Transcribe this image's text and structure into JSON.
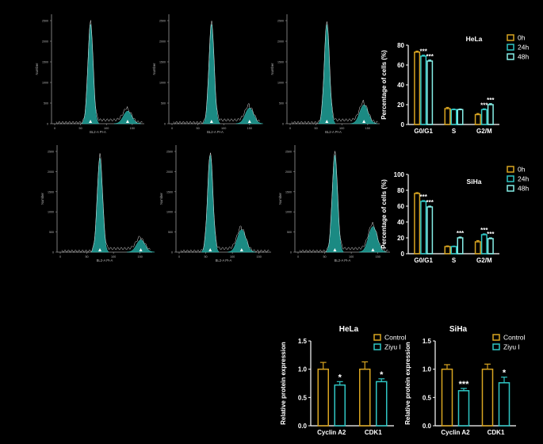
{
  "colors": {
    "background": "#000000",
    "histogram_fill": "#1b8a83",
    "series_0h": "#d9a521",
    "series_24h": "#2fc6c4",
    "series_48h": "#86efe8",
    "series_control": "#d9a521",
    "series_ziyu": "#2fc6c4",
    "axis": "#ffffff",
    "hist_axis": "#9a9a9a"
  },
  "histograms": {
    "xlabel": "BL2-A PI-A",
    "ylabel": "Number",
    "x_ticks": [
      "0",
      "50",
      "100",
      "150"
    ],
    "y_ticks": [
      "0",
      "500",
      "1000",
      "1500",
      "2000",
      "2500"
    ],
    "panels": [
      {
        "id": "hela-0h",
        "g1_pos": 0.42,
        "g1_height": 0.95,
        "g2_pos": 0.82,
        "g2_height": 0.12
      },
      {
        "id": "hela-24h",
        "g1_pos": 0.46,
        "g1_height": 0.95,
        "g2_pos": 0.87,
        "g2_height": 0.15
      },
      {
        "id": "hela-48h",
        "g1_pos": 0.43,
        "g1_height": 0.95,
        "g2_pos": 0.83,
        "g2_height": 0.18
      },
      {
        "id": "siha-0h",
        "g1_pos": 0.45,
        "g1_height": 0.92,
        "g2_pos": 0.88,
        "g2_height": 0.12
      },
      {
        "id": "siha-24h",
        "g1_pos": 0.36,
        "g1_height": 0.95,
        "g2_pos": 0.69,
        "g2_height": 0.22
      },
      {
        "id": "siha-48h",
        "g1_pos": 0.42,
        "g1_height": 0.95,
        "g2_pos": 0.82,
        "g2_height": 0.25
      }
    ]
  },
  "chart_data": [
    {
      "type": "bar",
      "title": "HeLa",
      "ylabel": "Percentage of cells (%)",
      "xlabel": "",
      "ylim": [
        0,
        80
      ],
      "yticks": [
        "0",
        "20",
        "40",
        "60",
        "80"
      ],
      "categories": [
        "G0/G1",
        "S",
        "G2/M"
      ],
      "series": [
        {
          "name": "0h",
          "values": [
            73,
            16,
            10
          ],
          "errors": [
            1,
            1.2,
            1
          ]
        },
        {
          "name": "24h",
          "values": [
            69,
            15,
            15
          ],
          "errors": [
            1,
            0.6,
            0.8
          ]
        },
        {
          "name": "48h",
          "values": [
            64,
            15,
            20
          ],
          "errors": [
            1,
            0.6,
            1
          ]
        }
      ],
      "annotations": [
        {
          "category": "G0/G1",
          "series": "24h",
          "text": "***"
        },
        {
          "category": "G0/G1",
          "series": "48h",
          "text": "***"
        },
        {
          "category": "G2/M",
          "series": "24h",
          "text": "***"
        },
        {
          "category": "G2/M",
          "series": "48h",
          "text": "***"
        }
      ],
      "legend": "top-right"
    },
    {
      "type": "bar",
      "title": "SiHa",
      "ylabel": "Percentage of cells (%)",
      "xlabel": "",
      "ylim": [
        0,
        100
      ],
      "yticks": [
        "0",
        "20",
        "40",
        "60",
        "80",
        "100"
      ],
      "categories": [
        "G0/G1",
        "S",
        "G2/M"
      ],
      "series": [
        {
          "name": "0h",
          "values": [
            76,
            9,
            15
          ],
          "errors": [
            1,
            0.8,
            1.5
          ]
        },
        {
          "name": "24h",
          "values": [
            66,
            9,
            24
          ],
          "errors": [
            1,
            0.6,
            1
          ]
        },
        {
          "name": "48h",
          "values": [
            59,
            20,
            19
          ],
          "errors": [
            1,
            1,
            1
          ]
        }
      ],
      "annotations": [
        {
          "category": "G0/G1",
          "series": "24h",
          "text": "***"
        },
        {
          "category": "G0/G1",
          "series": "48h",
          "text": "***"
        },
        {
          "category": "S",
          "series": "48h",
          "text": "***"
        },
        {
          "category": "G2/M",
          "series": "24h",
          "text": "***"
        },
        {
          "category": "G2/M",
          "series": "48h",
          "text": "***"
        }
      ],
      "legend": "top-right"
    },
    {
      "type": "bar",
      "title": "HeLa",
      "ylabel": "Relative protein expression",
      "xlabel": "",
      "ylim": [
        0,
        1.5
      ],
      "yticks": [
        "0.0",
        "0.5",
        "1.0",
        "1.5"
      ],
      "categories": [
        "Cyclin A2",
        "CDK1"
      ],
      "series": [
        {
          "name": "Control",
          "values": [
            1.0,
            1.0
          ],
          "errors": [
            0.12,
            0.13
          ]
        },
        {
          "name": "Ziyu I",
          "values": [
            0.72,
            0.78
          ],
          "errors": [
            0.06,
            0.05
          ]
        }
      ],
      "annotations": [
        {
          "category": "Cyclin A2",
          "series": "Ziyu I",
          "text": "*"
        },
        {
          "category": "CDK1",
          "series": "Ziyu I",
          "text": "*"
        }
      ],
      "legend": "top-right"
    },
    {
      "type": "bar",
      "title": "SiHa",
      "ylabel": "Relative protein expression",
      "xlabel": "",
      "ylim": [
        0,
        1.5
      ],
      "yticks": [
        "0.0",
        "0.5",
        "1.0",
        "1.5"
      ],
      "categories": [
        "Cyclin A2",
        "CDK1"
      ],
      "series": [
        {
          "name": "Control",
          "values": [
            1.0,
            1.0
          ],
          "errors": [
            0.08,
            0.09
          ]
        },
        {
          "name": "Ziyu I",
          "values": [
            0.62,
            0.76
          ],
          "errors": [
            0.04,
            0.1
          ]
        }
      ],
      "annotations": [
        {
          "category": "Cyclin A2",
          "series": "Ziyu I",
          "text": "***"
        },
        {
          "category": "CDK1",
          "series": "Ziyu I",
          "text": "*"
        }
      ],
      "legend": "top-right"
    }
  ]
}
